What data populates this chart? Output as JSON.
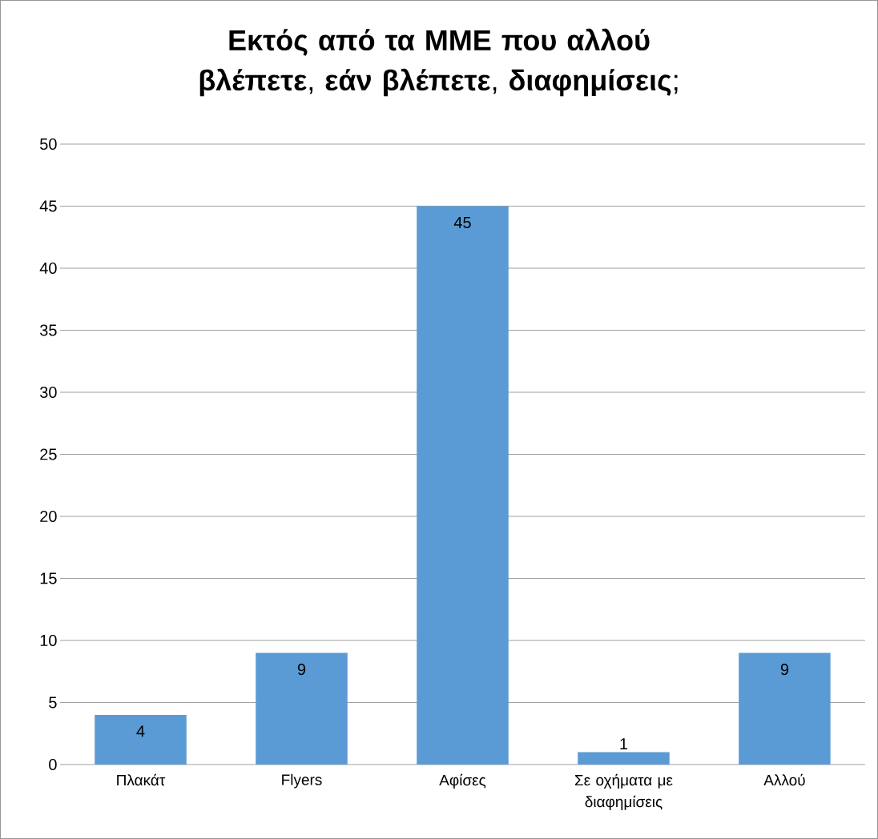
{
  "chart_data": {
    "type": "bar",
    "title": "**Εκτός από τα ΜΜΕ που αλλού βλέπετε**, **εάν βλέπετε**, **διαφημίσεις**;",
    "categories": [
      "Πλακάτ",
      "Flyers",
      "Αφίσες",
      "Σε οχήματα με διαφημίσεις",
      "Αλλού"
    ],
    "values": [
      4,
      9,
      45,
      1,
      9
    ],
    "color": "#5b9bd5",
    "ylim": [
      0,
      50
    ],
    "yticks": [
      0,
      5,
      10,
      15,
      20,
      25,
      30,
      35,
      40,
      45,
      50
    ],
    "grid": "y",
    "data_labels": true
  }
}
